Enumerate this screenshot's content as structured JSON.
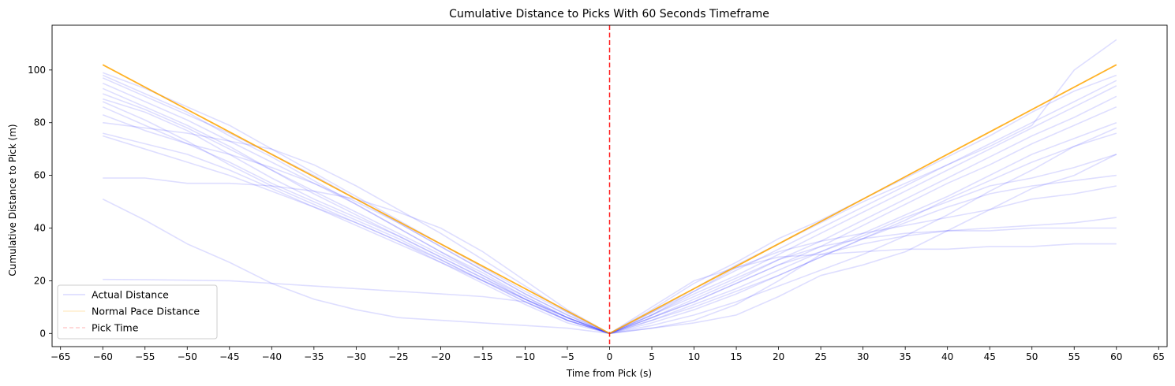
{
  "chart_data": {
    "type": "line",
    "title": "Cumulative Distance to Picks With 60 Seconds Timeframe",
    "xlabel": "Time from Pick (s)",
    "ylabel": "Cumulative Distance to Pick (m)",
    "xlim": [
      -66,
      66
    ],
    "ylim": [
      -5,
      117
    ],
    "xticks": [
      -65,
      -60,
      -55,
      -50,
      -45,
      -40,
      -35,
      -30,
      -25,
      -20,
      -15,
      -10,
      -5,
      0,
      5,
      10,
      15,
      20,
      25,
      30,
      35,
      40,
      45,
      50,
      55,
      60,
      65
    ],
    "yticks": [
      0,
      20,
      40,
      60,
      80,
      100
    ],
    "grid": false,
    "legend_position": "lower-left",
    "legend": [
      {
        "label": "Actual Distance",
        "color": "#0000ff",
        "style": "solid"
      },
      {
        "label": "Normal Pace Distance",
        "color": "#ffa500",
        "style": "solid"
      },
      {
        "label": "Pick Time",
        "color": "#ff0000",
        "style": "dashed"
      }
    ],
    "pick_time": 0,
    "normal_pace": {
      "color": "#ffa500",
      "x": [
        -60,
        0,
        60
      ],
      "y": [
        102,
        0,
        102
      ]
    },
    "actual_series": [
      {
        "x": [
          -60,
          -55,
          -50,
          -45,
          -40,
          -35,
          -30,
          -25,
          -20,
          -15,
          -10,
          -5,
          0,
          5,
          10,
          15,
          20,
          25,
          30,
          35,
          40,
          45,
          50,
          55,
          60
        ],
        "y": [
          99,
          93,
          86,
          79,
          70,
          61,
          52,
          43,
          34,
          25,
          16,
          8,
          0,
          9,
          19,
          27,
          36,
          43,
          51,
          59,
          67,
          75,
          84,
          92,
          98
        ]
      },
      {
        "x": [
          -60,
          -55,
          -50,
          -45,
          -40,
          -35,
          -30,
          -25,
          -20,
          -15,
          -10,
          -5,
          0,
          5,
          10,
          15,
          20,
          25,
          30,
          35,
          40,
          45,
          50,
          55,
          60
        ],
        "y": [
          97,
          90,
          83,
          76,
          68,
          60,
          51,
          42,
          33,
          24,
          15,
          7,
          0,
          8,
          16,
          24,
          32,
          40,
          48,
          56,
          64,
          72,
          80,
          88,
          96
        ]
      },
      {
        "x": [
          -60,
          -55,
          -50,
          -45,
          -40,
          -35,
          -30,
          -25,
          -20,
          -15,
          -10,
          -5,
          0,
          5,
          10,
          15,
          20,
          25,
          30,
          35,
          40,
          45,
          50,
          55,
          60
        ],
        "y": [
          95,
          88,
          81,
          73,
          65,
          57,
          49,
          40,
          31,
          23,
          14,
          6,
          0,
          7,
          15,
          22,
          30,
          38,
          46,
          54,
          62,
          70,
          78,
          86,
          94
        ]
      },
      {
        "x": [
          -60,
          -55,
          -50,
          -45,
          -40,
          -35,
          -30,
          -25,
          -20,
          -15,
          -10,
          -5,
          0,
          5,
          10,
          15,
          20,
          25,
          30,
          35,
          40,
          45,
          50,
          55,
          60
        ],
        "y": [
          93,
          86,
          79,
          71,
          62,
          54,
          46,
          38,
          30,
          22,
          13,
          6,
          0,
          6,
          13,
          20,
          28,
          35,
          43,
          51,
          59,
          67,
          75,
          82,
          90
        ]
      },
      {
        "x": [
          -60,
          -55,
          -50,
          -45,
          -40,
          -35,
          -30,
          -25,
          -20,
          -15,
          -10,
          -5,
          0,
          5,
          10,
          15,
          20,
          25,
          30,
          35,
          40,
          45,
          50,
          55,
          60
        ],
        "y": [
          89,
          84,
          77,
          68,
          59,
          51,
          44,
          37,
          29,
          21,
          13,
          5,
          0,
          6,
          12,
          19,
          26,
          33,
          41,
          49,
          57,
          64,
          72,
          79,
          86
        ]
      },
      {
        "x": [
          -60,
          -55,
          -50,
          -45,
          -40,
          -35,
          -30,
          -25,
          -20,
          -15,
          -10,
          -5,
          0,
          5,
          10,
          15,
          20,
          25,
          30,
          35,
          40,
          45,
          50,
          55,
          60
        ],
        "y": [
          88,
          81,
          73,
          64,
          56,
          49,
          42,
          35,
          27,
          19,
          11,
          4,
          0,
          5,
          11,
          17,
          24,
          31,
          38,
          45,
          52,
          60,
          68,
          74,
          80
        ]
      },
      {
        "x": [
          -60,
          -55,
          -50,
          -45,
          -40,
          -35,
          -30,
          -25,
          -20,
          -15,
          -10,
          -5,
          0,
          5,
          10,
          15,
          20,
          25,
          30,
          35,
          40,
          45,
          50,
          55,
          60
        ],
        "y": [
          86,
          79,
          72,
          65,
          57,
          50,
          43,
          36,
          28,
          20,
          12,
          5,
          0,
          5,
          10,
          16,
          22,
          29,
          36,
          43,
          51,
          58,
          65,
          71,
          76
        ]
      },
      {
        "x": [
          -60,
          -55,
          -50,
          -45,
          -40,
          -35,
          -30,
          -25,
          -20,
          -15,
          -10,
          -5,
          0,
          5,
          10,
          15,
          20,
          25,
          30,
          35,
          40,
          45,
          50,
          55,
          60
        ],
        "y": [
          83,
          77,
          72,
          68,
          63,
          57,
          50,
          42,
          33,
          24,
          15,
          7,
          0,
          6,
          12,
          19,
          26,
          31,
          37,
          44,
          50,
          56,
          59,
          63,
          68
        ]
      },
      {
        "x": [
          -60,
          -55,
          -50,
          -45,
          -40,
          -35,
          -30,
          -25,
          -20,
          -15,
          -10,
          -5,
          0,
          5,
          10,
          15,
          20,
          25,
          30,
          35,
          40,
          45,
          50,
          55,
          60
        ],
        "y": [
          80,
          78,
          76,
          73,
          70,
          64,
          56,
          47,
          38,
          28,
          18,
          8,
          0,
          4,
          9,
          15,
          22,
          29,
          36,
          42,
          48,
          53,
          56,
          58,
          60
        ]
      },
      {
        "x": [
          -60,
          -55,
          -50,
          -45,
          -40,
          -35,
          -30,
          -25,
          -20,
          -15,
          -10,
          -5,
          0,
          5,
          10,
          15,
          20,
          25,
          30,
          35,
          40,
          45,
          50,
          55,
          60
        ],
        "y": [
          76,
          72,
          68,
          62,
          55,
          48,
          41,
          34,
          27,
          20,
          12,
          5,
          0,
          3,
          7,
          12,
          18,
          24,
          30,
          37,
          45,
          54,
          62,
          71,
          78
        ]
      },
      {
        "x": [
          -60,
          -55,
          -50,
          -45,
          -40,
          -35,
          -30,
          -25,
          -20,
          -15,
          -10,
          -5,
          0,
          5,
          10,
          15,
          20,
          25,
          30,
          35,
          40,
          45,
          50,
          55,
          60
        ],
        "y": [
          75,
          70,
          65,
          60,
          54,
          48,
          42,
          35,
          28,
          20,
          13,
          6,
          0,
          2,
          4,
          7,
          14,
          22,
          26,
          31,
          39,
          47,
          55,
          60,
          68
        ]
      },
      {
        "x": [
          -60,
          -55,
          -50,
          -45,
          -40,
          -35,
          -30,
          -25,
          -20,
          -15,
          -10,
          -5,
          0,
          5,
          10,
          15,
          20,
          25,
          30,
          35,
          40,
          45,
          50,
          55,
          60
        ],
        "y": [
          59,
          59,
          57,
          57,
          56,
          54,
          51,
          46,
          40,
          31,
          20,
          9,
          0,
          7,
          16,
          25,
          31,
          35,
          38,
          41,
          44,
          47,
          51,
          53,
          56
        ]
      },
      {
        "x": [
          -60,
          -55,
          -50,
          -45,
          -40,
          -35,
          -30,
          -25,
          -20,
          -15,
          -10,
          -5,
          0,
          5,
          10,
          15,
          20,
          25,
          30,
          35,
          40,
          45,
          50,
          55,
          60
        ],
        "y": [
          51,
          43,
          34,
          27,
          19,
          13,
          9,
          6,
          5,
          4,
          3,
          2,
          0,
          2,
          5,
          11,
          20,
          30,
          34,
          37,
          39,
          39,
          40,
          40,
          40
        ]
      },
      {
        "x": [
          -60,
          -55,
          -50,
          -45,
          -40,
          -35,
          -30,
          -25,
          -20,
          -15,
          -10,
          -5,
          0,
          5,
          10,
          15,
          20,
          25,
          30,
          35,
          40,
          45,
          50,
          55,
          60
        ],
        "y": [
          20.5,
          20.4,
          20.2,
          20,
          19,
          18,
          17,
          16,
          15,
          14,
          12,
          5,
          0,
          10,
          20,
          25,
          29,
          30,
          31,
          32,
          32,
          33,
          33,
          34,
          34
        ]
      },
      {
        "x": [
          -60,
          -55,
          -50,
          -45,
          -40,
          -35,
          -30,
          -25,
          -20,
          -15,
          -10,
          -5,
          0,
          5,
          10,
          15,
          20,
          25,
          30,
          35,
          40,
          45,
          50,
          55,
          60
        ],
        "y": [
          98,
          91,
          84,
          75,
          67,
          58,
          49,
          40,
          31,
          22,
          14,
          6,
          0,
          8,
          17,
          26,
          34,
          42,
          50,
          57,
          64,
          71,
          79,
          100,
          111.5
        ]
      },
      {
        "x": [
          -60,
          -55,
          -50,
          -45,
          -40,
          -35,
          -30,
          -25,
          -20,
          -15,
          -10,
          -5,
          0,
          5,
          10,
          15,
          20,
          25,
          30,
          35,
          40,
          45,
          50,
          55,
          60
        ],
        "y": [
          91,
          85,
          78,
          70,
          62,
          53,
          45,
          37,
          29,
          21,
          13,
          6,
          0,
          7,
          14,
          21,
          28,
          33,
          36,
          38,
          39,
          40,
          41,
          42,
          44
        ]
      }
    ]
  }
}
